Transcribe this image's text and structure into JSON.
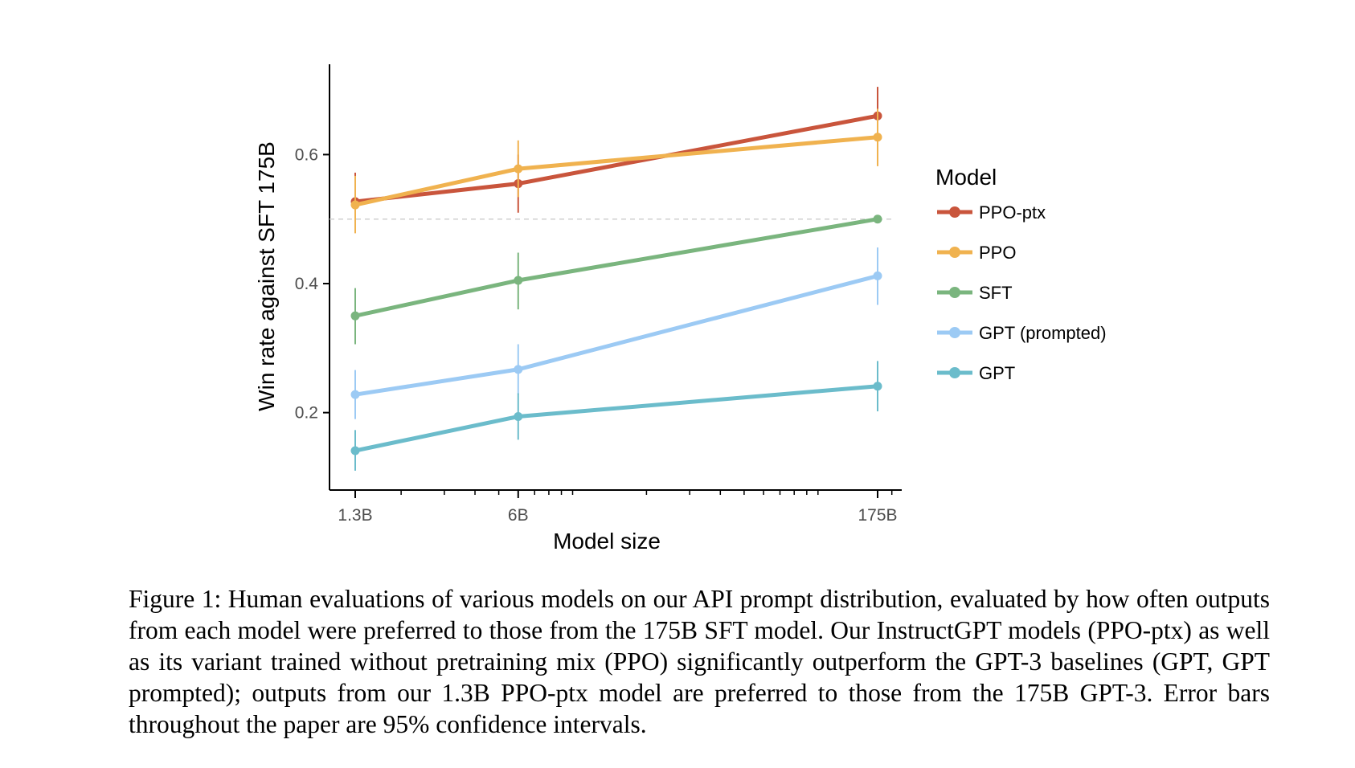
{
  "chart_data": {
    "type": "line",
    "x_scale": "log",
    "categories": [
      "1.3B",
      "6B",
      "175B"
    ],
    "x": [
      1.3,
      6,
      175
    ],
    "xlabel": "Model size",
    "ylabel": "Win rate against SFT 175B",
    "ylim": [
      0.08,
      0.74
    ],
    "yticks": [
      0.2,
      0.4,
      0.6
    ],
    "yticklabels": [
      "0.2",
      "0.4",
      "0.6"
    ],
    "reference_line": 0.5,
    "grid": false,
    "legend": {
      "title": "Model",
      "placement": "right"
    },
    "series": [
      {
        "name": "PPO-ptx",
        "color": "#c9553c",
        "values": [
          0.527,
          0.555,
          0.66
        ],
        "lower": [
          0.48,
          0.51,
          0.615
        ],
        "upper": [
          0.572,
          0.6,
          0.705
        ]
      },
      {
        "name": "PPO",
        "color": "#f0b24f",
        "values": [
          0.522,
          0.578,
          0.627
        ],
        "lower": [
          0.478,
          0.534,
          0.582
        ],
        "upper": [
          0.567,
          0.622,
          0.671
        ]
      },
      {
        "name": "SFT",
        "color": "#7ab57e",
        "values": [
          0.35,
          0.405,
          0.5
        ],
        "lower": [
          0.306,
          0.36,
          0.5
        ],
        "upper": [
          0.393,
          0.448,
          0.5
        ]
      },
      {
        "name": "GPT (prompted)",
        "color": "#9ccaf4",
        "values": [
          0.228,
          0.267,
          0.412
        ],
        "lower": [
          0.19,
          0.228,
          0.367
        ],
        "upper": [
          0.266,
          0.306,
          0.456
        ]
      },
      {
        "name": "GPT",
        "color": "#6bbccb",
        "values": [
          0.141,
          0.194,
          0.241
        ],
        "lower": [
          0.11,
          0.158,
          0.202
        ],
        "upper": [
          0.173,
          0.23,
          0.28
        ]
      }
    ]
  },
  "caption": "Figure 1: Human evaluations of various models on our API prompt distribution, evaluated by how often outputs from each model were preferred to those from the 175B SFT model. Our InstructGPT models (PPO-ptx) as well as its variant trained without pretraining mix (PPO) significantly outperform the GPT-3 baselines (GPT, GPT prompted); outputs from our 1.3B PPO-ptx model are preferred to those from the 175B GPT-3. Error bars throughout the paper are 95% confidence intervals."
}
